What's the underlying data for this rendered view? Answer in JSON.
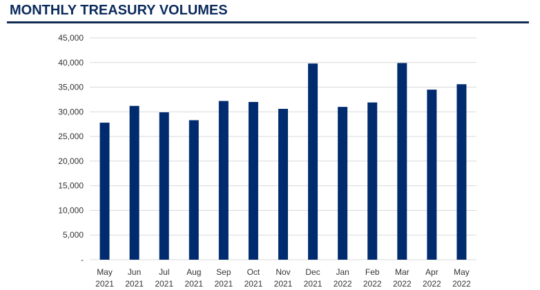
{
  "chart_data": {
    "type": "bar",
    "title": "MONTHLY TREASURY VOLUMES",
    "xlabel": "",
    "ylabel": "",
    "categories": [
      [
        "May",
        "2021"
      ],
      [
        "Jun",
        "2021"
      ],
      [
        "Jul",
        "2021"
      ],
      [
        "Aug",
        "2021"
      ],
      [
        "Sep",
        "2021"
      ],
      [
        "Oct",
        "2021"
      ],
      [
        "Nov",
        "2021"
      ],
      [
        "Dec",
        "2021"
      ],
      [
        "Jan",
        "2022"
      ],
      [
        "Feb",
        "2022"
      ],
      [
        "Mar",
        "2022"
      ],
      [
        "Apr",
        "2022"
      ],
      [
        "May",
        "2022"
      ]
    ],
    "values": [
      27800,
      31200,
      29900,
      28300,
      32200,
      32000,
      30600,
      39800,
      31000,
      31900,
      39900,
      34500,
      35600
    ],
    "ylim": [
      0,
      45000
    ],
    "yticks": [
      0,
      5000,
      10000,
      15000,
      20000,
      25000,
      30000,
      35000,
      40000,
      45000
    ],
    "ytick_labels": [
      "-",
      "5,000",
      "10,000",
      "15,000",
      "20,000",
      "25,000",
      "30,000",
      "35,000",
      "40,000",
      "45,000"
    ],
    "grid": true,
    "legend": "none",
    "colors": {
      "bar": "#002b6e",
      "grid": "#d9d9d9",
      "title": "#0a2a5c",
      "rule": "#0f2a50"
    }
  }
}
